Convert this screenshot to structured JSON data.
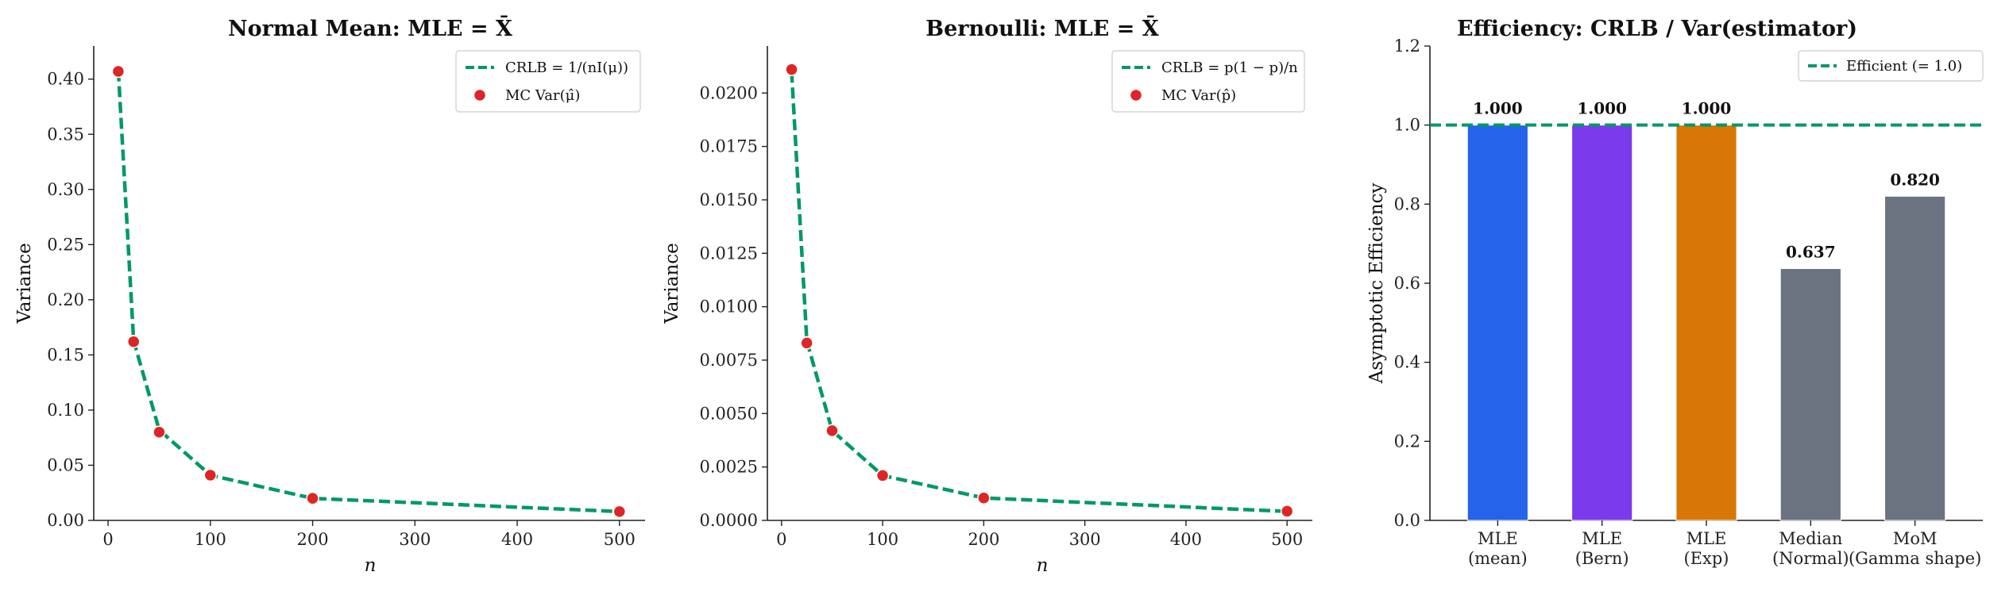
{
  "chart_data": [
    {
      "type": "line",
      "title": "Normal Mean: MLE = X̄",
      "xlabel": "n",
      "ylabel": "Variance",
      "xlim": [
        -14,
        525
      ],
      "ylim": [
        0,
        0.43
      ],
      "xticks": [
        0,
        100,
        200,
        300,
        400,
        500
      ],
      "yticks": [
        0.0,
        0.05,
        0.1,
        0.15,
        0.2,
        0.25,
        0.3,
        0.35,
        0.4
      ],
      "ytick_labels": [
        "0.00",
        "0.05",
        "0.10",
        "0.15",
        "0.20",
        "0.25",
        "0.30",
        "0.35",
        "0.40"
      ],
      "x": [
        10,
        25,
        50,
        100,
        200,
        500
      ],
      "series": [
        {
          "name": "CRLB = 1/(nI(μ))",
          "kind": "dashed-line",
          "color": "#009966",
          "values": [
            0.408,
            0.163,
            0.082,
            0.041,
            0.02,
            0.008
          ]
        },
        {
          "name": "MC Var(μ̂)",
          "kind": "markers",
          "color": "#dc2626",
          "values": [
            0.407,
            0.162,
            0.08,
            0.041,
            0.02,
            0.008
          ]
        }
      ],
      "legend": "top-right"
    },
    {
      "type": "line",
      "title": "Bernoulli: MLE = X̄",
      "xlabel": "n",
      "ylabel": "Variance",
      "xlim": [
        -14,
        525
      ],
      "ylim": [
        0,
        0.0222
      ],
      "xticks": [
        0,
        100,
        200,
        300,
        400,
        500
      ],
      "yticks": [
        0.0,
        0.0025,
        0.005,
        0.0075,
        0.01,
        0.0125,
        0.015,
        0.0175,
        0.02
      ],
      "ytick_labels": [
        "0.0000",
        "0.0025",
        "0.0050",
        "0.0075",
        "0.0100",
        "0.0125",
        "0.0150",
        "0.0175",
        "0.0200"
      ],
      "x": [
        10,
        25,
        50,
        100,
        200,
        500
      ],
      "series": [
        {
          "name": "CRLB = p(1 − p)/n",
          "kind": "dashed-line",
          "color": "#009966",
          "values": [
            0.021,
            0.0084,
            0.0042,
            0.0021,
            0.00105,
            0.00042
          ]
        },
        {
          "name": "MC Var(p̂)",
          "kind": "markers",
          "color": "#dc2626",
          "values": [
            0.0211,
            0.0083,
            0.0042,
            0.0021,
            0.00105,
            0.00043
          ]
        }
      ],
      "legend": "top-right"
    },
    {
      "type": "bar",
      "title": "Efficiency: CRLB / Var(estimator)",
      "ylabel": "Asymptotic Efficiency",
      "ylim": [
        0,
        1.2
      ],
      "yticks": [
        0.0,
        0.2,
        0.4,
        0.6,
        0.8,
        1.0,
        1.2
      ],
      "ytick_labels": [
        "0.0",
        "0.2",
        "0.4",
        "0.6",
        "0.8",
        "1.0",
        "1.2"
      ],
      "categories": [
        [
          "MLE",
          "(mean)"
        ],
        [
          "MLE",
          "(Bern)"
        ],
        [
          "MLE",
          "(Exp)"
        ],
        [
          "Median",
          "(Normal)"
        ],
        [
          "MoM",
          "(Gamma shape)"
        ]
      ],
      "values": [
        1.0,
        1.0,
        1.0,
        0.637,
        0.82
      ],
      "value_labels": [
        "1.000",
        "1.000",
        "1.000",
        "0.637",
        "0.820"
      ],
      "colors": [
        "#2563eb",
        "#7c3aed",
        "#d97706",
        "#6b7280",
        "#6b7280"
      ],
      "reference_line": {
        "value": 1.0,
        "name": "Efficient (= 1.0)",
        "color": "#009966"
      },
      "legend": "top-right"
    }
  ]
}
